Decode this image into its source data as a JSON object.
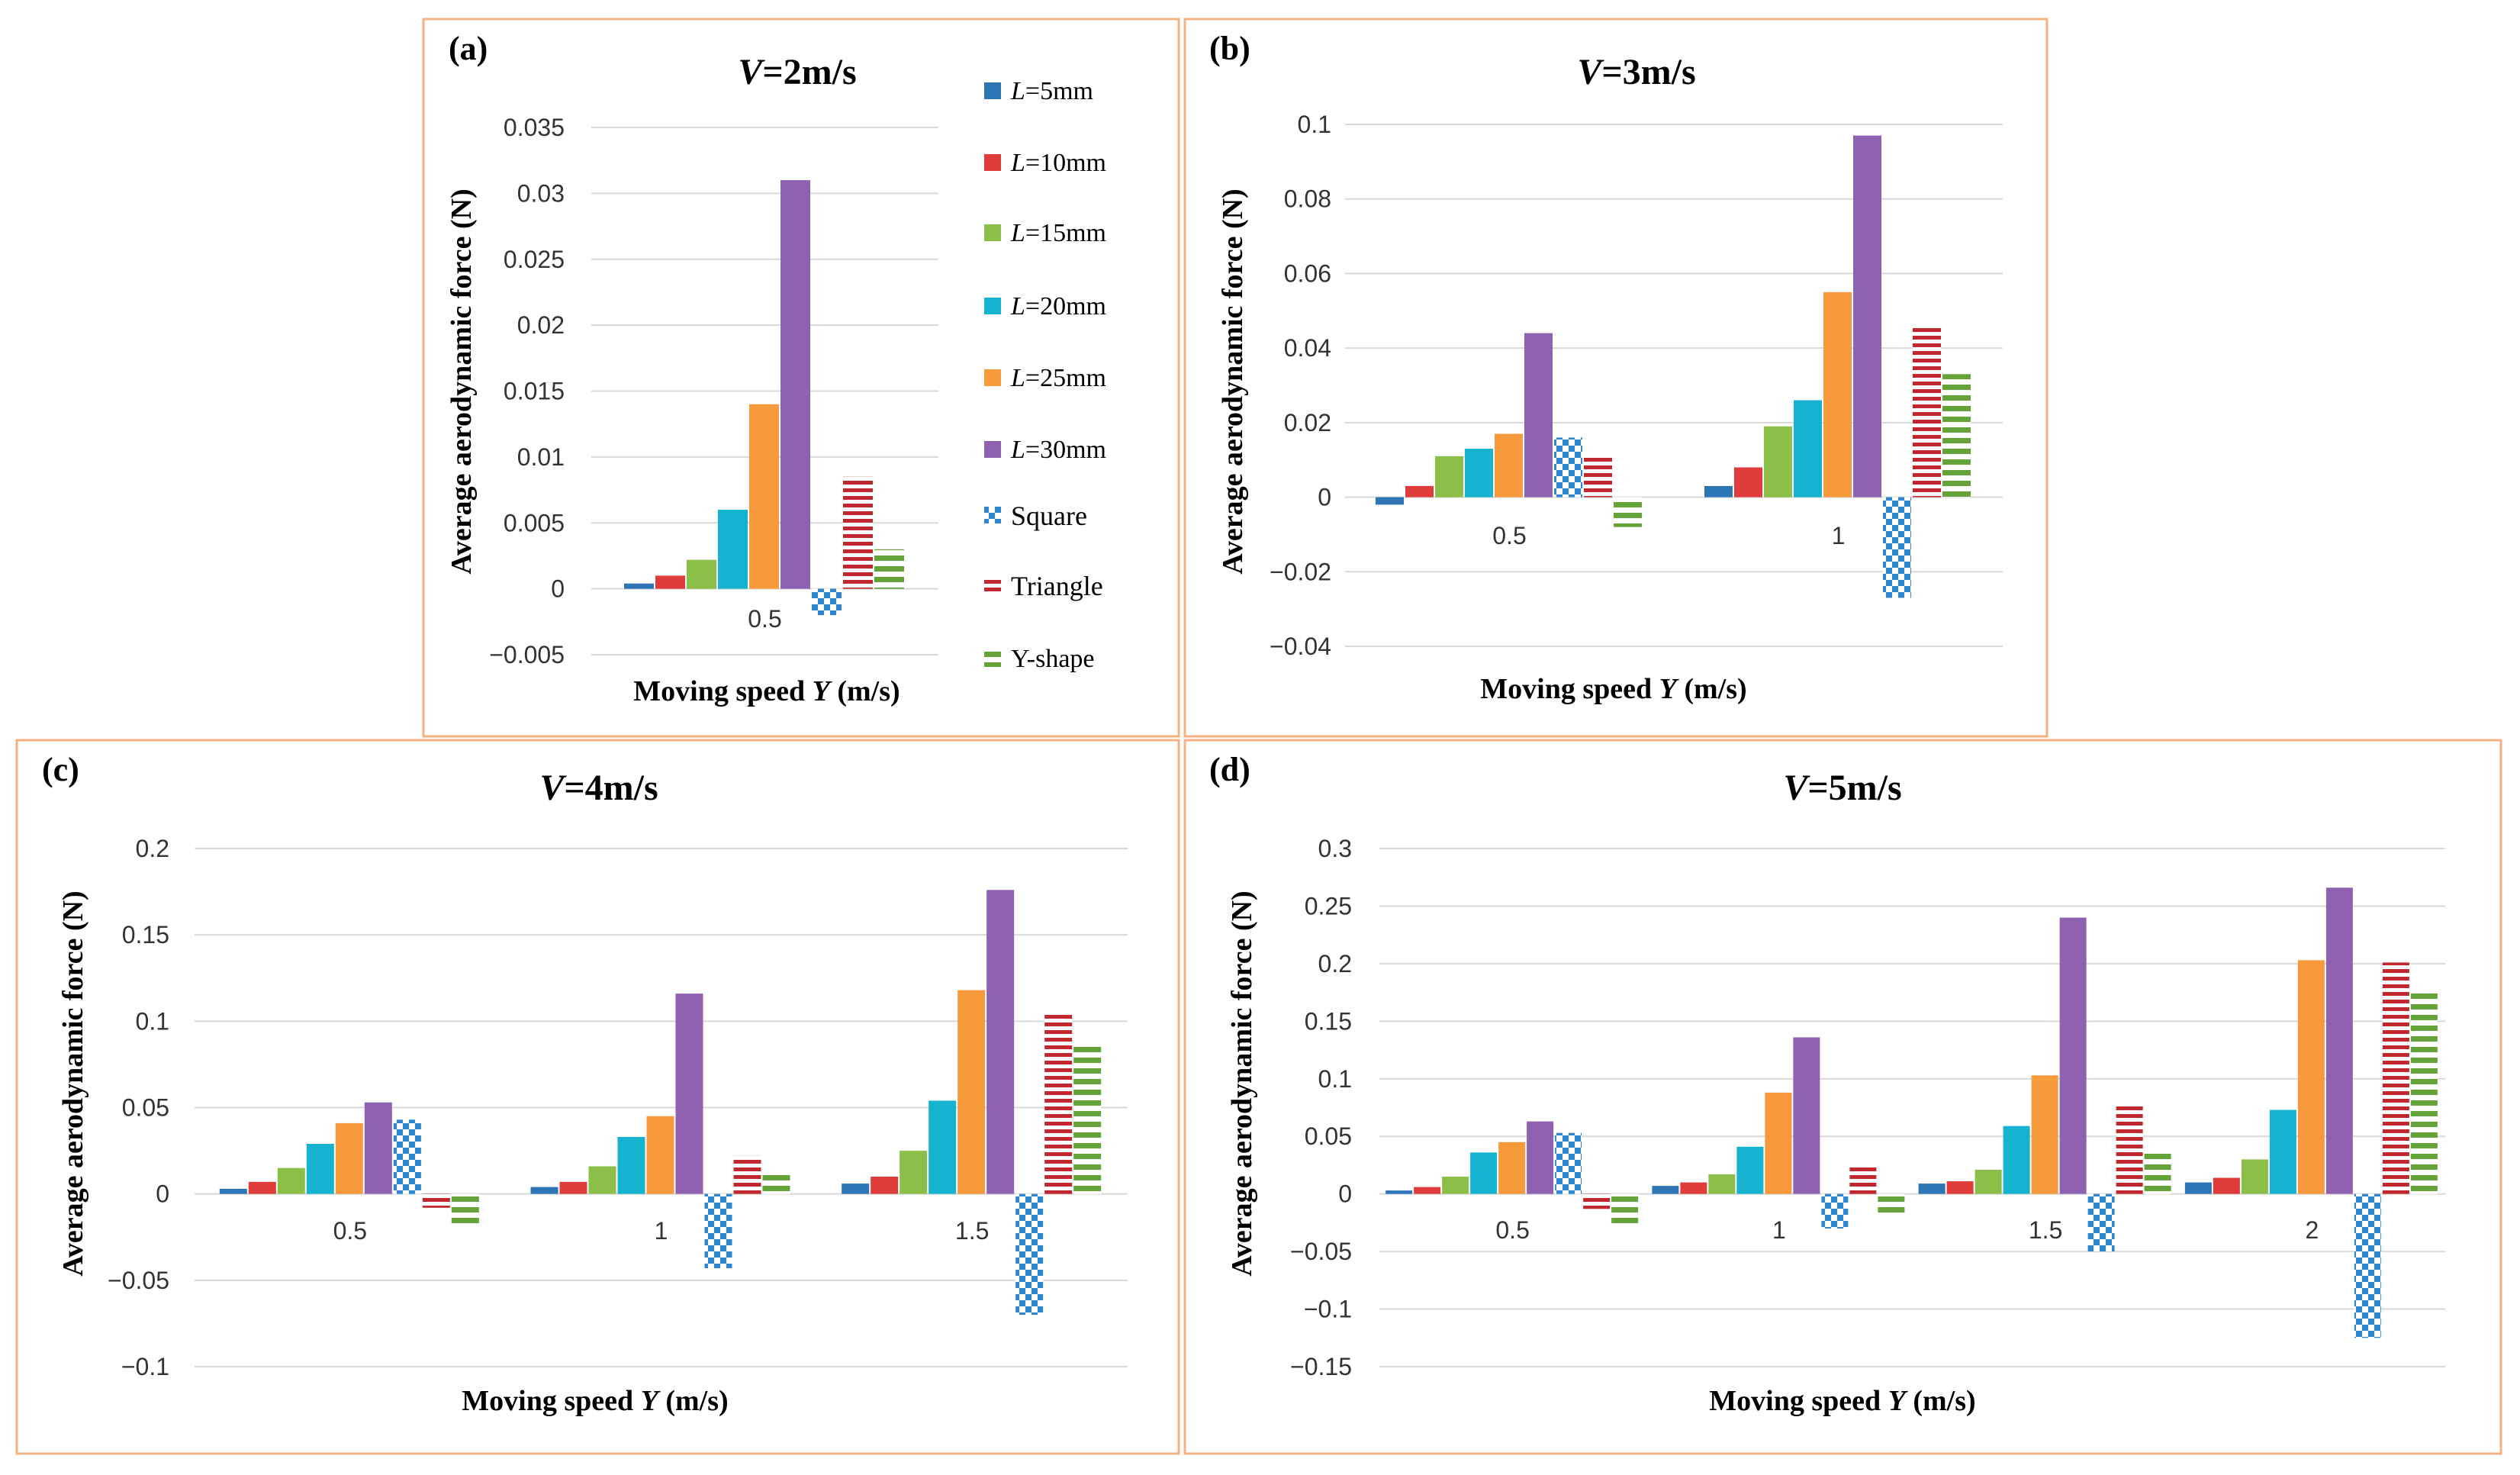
{
  "legend": {
    "entries": [
      {
        "prefix": "L",
        "value": "=5mm"
      },
      {
        "prefix": "L",
        "value": "=10mm"
      },
      {
        "prefix": "L",
        "value": "=15mm"
      },
      {
        "prefix": "L",
        "value": "=20mm"
      },
      {
        "prefix": "L",
        "value": "=25mm"
      },
      {
        "prefix": "L",
        "value": "=30mm"
      },
      {
        "prefix": "",
        "value": "Square"
      },
      {
        "prefix": "",
        "value": "Triangle"
      },
      {
        "prefix": "",
        "value": "Y-shape"
      }
    ]
  },
  "colors": {
    "series": [
      "#2e75b6",
      "#e03c3c",
      "#8cbf48",
      "#15b3cf",
      "#f79a3c",
      "#8e62b1",
      "#2e86d0",
      "#c0282d",
      "#63a338"
    ],
    "frame": "#f4b183",
    "grid": "#d9d9d9"
  },
  "chart_data": [
    {
      "type": "bar",
      "panel_label": "(a)",
      "title_var": "V",
      "title_value": "=2m/s",
      "xlabel_text": "Moving speed ",
      "xlabel_var": "Y",
      "xlabel_unit": " (m/s)",
      "ylabel": "Average aerodynamic force (N)",
      "categories": [
        "0.5"
      ],
      "ylim": [
        -0.005,
        0.035
      ],
      "yticks": [
        "0.035",
        "0.03",
        "0.025",
        "0.02",
        "0.015",
        "0.01",
        "0.005",
        "0",
        "−0.005"
      ],
      "series": [
        {
          "name": "L=5mm",
          "values": [
            0.0004
          ]
        },
        {
          "name": "L=10mm",
          "values": [
            0.001
          ]
        },
        {
          "name": "L=15mm",
          "values": [
            0.0022
          ]
        },
        {
          "name": "L=20mm",
          "values": [
            0.006
          ]
        },
        {
          "name": "L=25mm",
          "values": [
            0.014
          ]
        },
        {
          "name": "L=30mm",
          "values": [
            0.031
          ]
        },
        {
          "name": "Square",
          "values": [
            -0.002
          ]
        },
        {
          "name": "Triangle",
          "values": [
            0.0085
          ]
        },
        {
          "name": "Y-shape",
          "values": [
            0.003
          ]
        }
      ]
    },
    {
      "type": "bar",
      "panel_label": "(b)",
      "title_var": "V",
      "title_value": "=3m/s",
      "xlabel_text": "Moving speed ",
      "xlabel_var": "Y",
      "xlabel_unit": " (m/s)",
      "ylabel": "Average aerodynamic force (N)",
      "categories": [
        "0.5",
        "1"
      ],
      "ylim": [
        -0.04,
        0.1
      ],
      "yticks": [
        "0.1",
        "0.08",
        "0.06",
        "0.04",
        "0.02",
        "0",
        "−0.02",
        "−0.04"
      ],
      "series": [
        {
          "name": "L=5mm",
          "values": [
            -0.002,
            0.003
          ]
        },
        {
          "name": "L=10mm",
          "values": [
            0.003,
            0.008
          ]
        },
        {
          "name": "L=15mm",
          "values": [
            0.011,
            0.019
          ]
        },
        {
          "name": "L=20mm",
          "values": [
            0.013,
            0.026
          ]
        },
        {
          "name": "L=25mm",
          "values": [
            0.017,
            0.055
          ]
        },
        {
          "name": "L=30mm",
          "values": [
            0.044,
            0.097
          ]
        },
        {
          "name": "Square",
          "values": [
            0.016,
            -0.027
          ]
        },
        {
          "name": "Triangle",
          "values": [
            0.011,
            0.046
          ]
        },
        {
          "name": "Y-shape",
          "values": [
            -0.008,
            0.033
          ]
        }
      ]
    },
    {
      "type": "bar",
      "panel_label": "(c)",
      "title_var": "V",
      "title_value": "=4m/s",
      "xlabel_text": "Moving speed ",
      "xlabel_var": "Y",
      "xlabel_unit": " (m/s)",
      "ylabel": "Average aerodynamic force (N)",
      "categories": [
        "0.5",
        "1",
        "1.5"
      ],
      "ylim": [
        -0.1,
        0.2
      ],
      "yticks": [
        "0.2",
        "0.15",
        "0.1",
        "0.05",
        "0",
        "−0.05",
        "−0.1"
      ],
      "series": [
        {
          "name": "L=5mm",
          "values": [
            0.003,
            0.004,
            0.006
          ]
        },
        {
          "name": "L=10mm",
          "values": [
            0.007,
            0.007,
            0.01
          ]
        },
        {
          "name": "L=15mm",
          "values": [
            0.015,
            0.016,
            0.025
          ]
        },
        {
          "name": "L=20mm",
          "values": [
            0.029,
            0.033,
            0.054
          ]
        },
        {
          "name": "L=25mm",
          "values": [
            0.041,
            0.045,
            0.118
          ]
        },
        {
          "name": "L=30mm",
          "values": [
            0.053,
            0.116,
            0.176
          ]
        },
        {
          "name": "Square",
          "values": [
            0.043,
            -0.043,
            -0.07
          ]
        },
        {
          "name": "Triangle",
          "values": [
            -0.008,
            0.022,
            0.105
          ]
        },
        {
          "name": "Y-shape",
          "values": [
            -0.02,
            0.012,
            0.086
          ]
        }
      ]
    },
    {
      "type": "bar",
      "panel_label": "(d)",
      "title_var": "V",
      "title_value": "=5m/s",
      "xlabel_text": "Moving speed ",
      "xlabel_var": "Y",
      "xlabel_unit": " (m/s)",
      "ylabel": "Average aerodynamic force (N)",
      "categories": [
        "0.5",
        "1",
        "1.5",
        "2"
      ],
      "ylim": [
        -0.15,
        0.3
      ],
      "yticks": [
        "0.3",
        "0.25",
        "0.2",
        "0.15",
        "0.1",
        "0.05",
        "0",
        "−0.05",
        "−0.1",
        "−0.15"
      ],
      "series": [
        {
          "name": "L=5mm",
          "values": [
            0.003,
            0.007,
            0.009,
            0.01
          ]
        },
        {
          "name": "L=10mm",
          "values": [
            0.006,
            0.01,
            0.011,
            0.014
          ]
        },
        {
          "name": "L=15mm",
          "values": [
            0.015,
            0.017,
            0.021,
            0.03
          ]
        },
        {
          "name": "L=20mm",
          "values": [
            0.036,
            0.041,
            0.059,
            0.073
          ]
        },
        {
          "name": "L=25mm",
          "values": [
            0.045,
            0.088,
            0.103,
            0.203
          ]
        },
        {
          "name": "L=30mm",
          "values": [
            0.063,
            0.136,
            0.24,
            0.266
          ]
        },
        {
          "name": "Square",
          "values": [
            0.053,
            -0.03,
            -0.05,
            -0.125
          ]
        },
        {
          "name": "Triangle",
          "values": [
            -0.013,
            0.024,
            0.076,
            0.201
          ]
        },
        {
          "name": "Y-shape",
          "values": [
            -0.03,
            -0.02,
            0.039,
            0.175
          ]
        }
      ]
    }
  ]
}
